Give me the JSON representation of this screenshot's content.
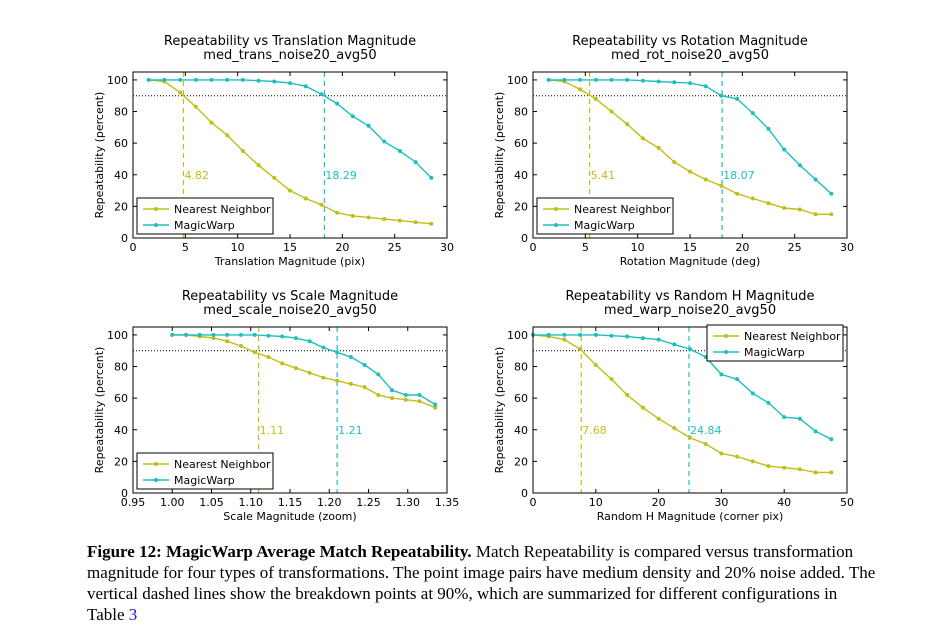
{
  "colors": {
    "nearest_neighbor": "#bfbf17",
    "magicwarp": "#1fbfbf"
  },
  "chart_data": [
    {
      "type": "line",
      "title": "Repeatability vs Translation Magnitude",
      "subtitle": "med_trans_noise20_avg50",
      "xlabel": "Translation Magnitude (pix)",
      "ylabel": "Repeatability (percent)",
      "xlim": [
        0,
        30
      ],
      "ylim": [
        0,
        105
      ],
      "xticks": [
        0,
        5,
        10,
        15,
        20,
        25,
        30
      ],
      "xtick_labels": [
        "0",
        "5",
        "10",
        "15",
        "20",
        "25",
        "30"
      ],
      "yticks": [
        0,
        20,
        40,
        60,
        80,
        100
      ],
      "ytick_labels": [
        "0",
        "20",
        "40",
        "60",
        "80",
        "100"
      ],
      "threshold": 90,
      "legend": "lower-left",
      "series": [
        {
          "name": "Nearest Neighbor",
          "x": [
            1.5,
            3,
            4.5,
            6,
            7.5,
            9,
            10.5,
            12,
            13.5,
            15,
            16.5,
            18,
            19.5,
            21,
            22.5,
            24,
            25.5,
            27,
            28.5
          ],
          "values": [
            100,
            99,
            92,
            83,
            73,
            65,
            55,
            46,
            38,
            30,
            25,
            21,
            16,
            14,
            13,
            12,
            11,
            10,
            9
          ],
          "breakdown": 4.82,
          "breakdown_label": "4.82"
        },
        {
          "name": "MagicWarp",
          "x": [
            1.5,
            3,
            4.5,
            6,
            7.5,
            9,
            10.5,
            12,
            13.5,
            15,
            16.5,
            18,
            19.5,
            21,
            22.5,
            24,
            25.5,
            27,
            28.5
          ],
          "values": [
            100,
            100,
            100,
            100,
            100,
            100,
            100,
            99.5,
            99,
            98,
            96,
            91,
            85,
            77,
            71,
            61,
            55,
            48,
            38
          ],
          "breakdown": 18.29,
          "breakdown_label": "18.29"
        }
      ]
    },
    {
      "type": "line",
      "title": "Repeatability vs Rotation Magnitude",
      "subtitle": "med_rot_noise20_avg50",
      "xlabel": "Rotation Magnitude (deg)",
      "ylabel": "Repeatability (percent)",
      "xlim": [
        0,
        30
      ],
      "ylim": [
        0,
        105
      ],
      "xticks": [
        0,
        5,
        10,
        15,
        20,
        25,
        30
      ],
      "xtick_labels": [
        "0",
        "5",
        "10",
        "15",
        "20",
        "25",
        "30"
      ],
      "yticks": [
        0,
        20,
        40,
        60,
        80,
        100
      ],
      "ytick_labels": [
        "0",
        "20",
        "40",
        "60",
        "80",
        "100"
      ],
      "threshold": 90,
      "legend": "lower-left",
      "series": [
        {
          "name": "Nearest Neighbor",
          "x": [
            1.5,
            3,
            4.5,
            6,
            7.5,
            9,
            10.5,
            12,
            13.5,
            15,
            16.5,
            18,
            19.5,
            21,
            22.5,
            24,
            25.5,
            27,
            28.5
          ],
          "values": [
            100,
            99,
            94,
            88,
            80,
            72,
            63,
            57,
            48,
            42,
            37,
            33,
            28,
            25,
            22,
            19,
            18,
            15,
            15
          ],
          "breakdown": 5.41,
          "breakdown_label": "5.41"
        },
        {
          "name": "MagicWarp",
          "x": [
            1.5,
            3,
            4.5,
            6,
            7.5,
            9,
            10.5,
            12,
            13.5,
            15,
            16.5,
            18,
            19.5,
            21,
            22.5,
            24,
            25.5,
            27,
            28.5
          ],
          "values": [
            100,
            100,
            100,
            100,
            100,
            100,
            99.5,
            99,
            98.5,
            98,
            96,
            90,
            88,
            79,
            69,
            56,
            46,
            37,
            28
          ],
          "breakdown": 18.07,
          "breakdown_label": "18.07"
        }
      ]
    },
    {
      "type": "line",
      "title": "Repeatability vs Scale Magnitude",
      "subtitle": "med_scale_noise20_avg50",
      "xlabel": "Scale Magnitude (zoom)",
      "ylabel": "Repeatability (percent)",
      "xlim": [
        0.95,
        1.35
      ],
      "ylim": [
        0,
        105
      ],
      "xticks": [
        0.95,
        1.0,
        1.05,
        1.1,
        1.15,
        1.2,
        1.25,
        1.3,
        1.35
      ],
      "xtick_labels": [
        "0.95",
        "1.00",
        "1.05",
        "1.10",
        "1.15",
        "1.20",
        "1.25",
        "1.30",
        "1.35"
      ],
      "yticks": [
        0,
        20,
        40,
        60,
        80,
        100
      ],
      "ytick_labels": [
        "0",
        "20",
        "40",
        "60",
        "80",
        "100"
      ],
      "threshold": 90,
      "legend": "lower-left",
      "series": [
        {
          "name": "Nearest Neighbor",
          "x": [
            1.0,
            1.0175,
            1.035,
            1.0525,
            1.07,
            1.0875,
            1.105,
            1.1225,
            1.14,
            1.1575,
            1.175,
            1.1925,
            1.21,
            1.2275,
            1.245,
            1.2625,
            1.28,
            1.2975,
            1.315,
            1.335
          ],
          "values": [
            100,
            100,
            99,
            98,
            96,
            93,
            89,
            86,
            82,
            79,
            76,
            73,
            71,
            69,
            67,
            62,
            60,
            59,
            58,
            54
          ],
          "breakdown": 1.11,
          "breakdown_label": "1.11"
        },
        {
          "name": "MagicWarp",
          "x": [
            1.0,
            1.0175,
            1.035,
            1.0525,
            1.07,
            1.0875,
            1.105,
            1.1225,
            1.14,
            1.1575,
            1.175,
            1.1925,
            1.21,
            1.2275,
            1.245,
            1.2625,
            1.28,
            1.2975,
            1.315,
            1.335
          ],
          "values": [
            100,
            100,
            100,
            100,
            100,
            100,
            100,
            99.5,
            99,
            98,
            96,
            92,
            89,
            86,
            81,
            75,
            65,
            62,
            62,
            56
          ],
          "breakdown": 1.21,
          "breakdown_label": "1.21"
        }
      ]
    },
    {
      "type": "line",
      "title": "Repeatability vs Random H Magnitude",
      "subtitle": "med_warp_noise20_avg50",
      "xlabel": "Random H Magnitude (corner pix)",
      "ylabel": "Repeatability (percent)",
      "xlim": [
        0,
        50
      ],
      "ylim": [
        0,
        105
      ],
      "xticks": [
        0,
        10,
        20,
        30,
        40,
        50
      ],
      "xtick_labels": [
        "0",
        "10",
        "20",
        "30",
        "40",
        "50"
      ],
      "yticks": [
        0,
        20,
        40,
        60,
        80,
        100
      ],
      "ytick_labels": [
        "0",
        "20",
        "40",
        "60",
        "80",
        "100"
      ],
      "threshold": 90,
      "legend": "upper-right",
      "series": [
        {
          "name": "Nearest Neighbor",
          "x": [
            0,
            2.5,
            5,
            7.5,
            10,
            12.5,
            15,
            17.5,
            20,
            22.5,
            25,
            27.5,
            30,
            32.5,
            35,
            37.5,
            40,
            42.5,
            45,
            47.5
          ],
          "values": [
            100,
            99,
            97,
            91,
            81,
            72,
            62,
            54,
            47,
            41,
            35,
            31,
            25,
            23,
            20,
            17,
            16,
            15,
            13,
            13
          ],
          "breakdown": 7.68,
          "breakdown_label": "7.68"
        },
        {
          "name": "MagicWarp",
          "x": [
            0,
            2.5,
            5,
            7.5,
            10,
            12.5,
            15,
            17.5,
            20,
            22.5,
            25,
            27.5,
            30,
            32.5,
            35,
            37.5,
            40,
            42.5,
            45,
            47.5
          ],
          "values": [
            100,
            100,
            100,
            100,
            100,
            99.5,
            99,
            98,
            97,
            94,
            91,
            86,
            75,
            72,
            63,
            57,
            48,
            47,
            39,
            34
          ],
          "breakdown": 24.84,
          "breakdown_label": "24.84"
        }
      ]
    }
  ],
  "caption": {
    "label": "Figure 12: MagicWarp Average Match Repeatability.",
    "text": "Match Repeatability is compared versus transformation magnitude for four types of transformations. The point image pairs have medium density and 20% noise added. The vertical dashed lines show the breakdown points at 90%, which are summarized for different configurations in Table",
    "ref": "3"
  }
}
